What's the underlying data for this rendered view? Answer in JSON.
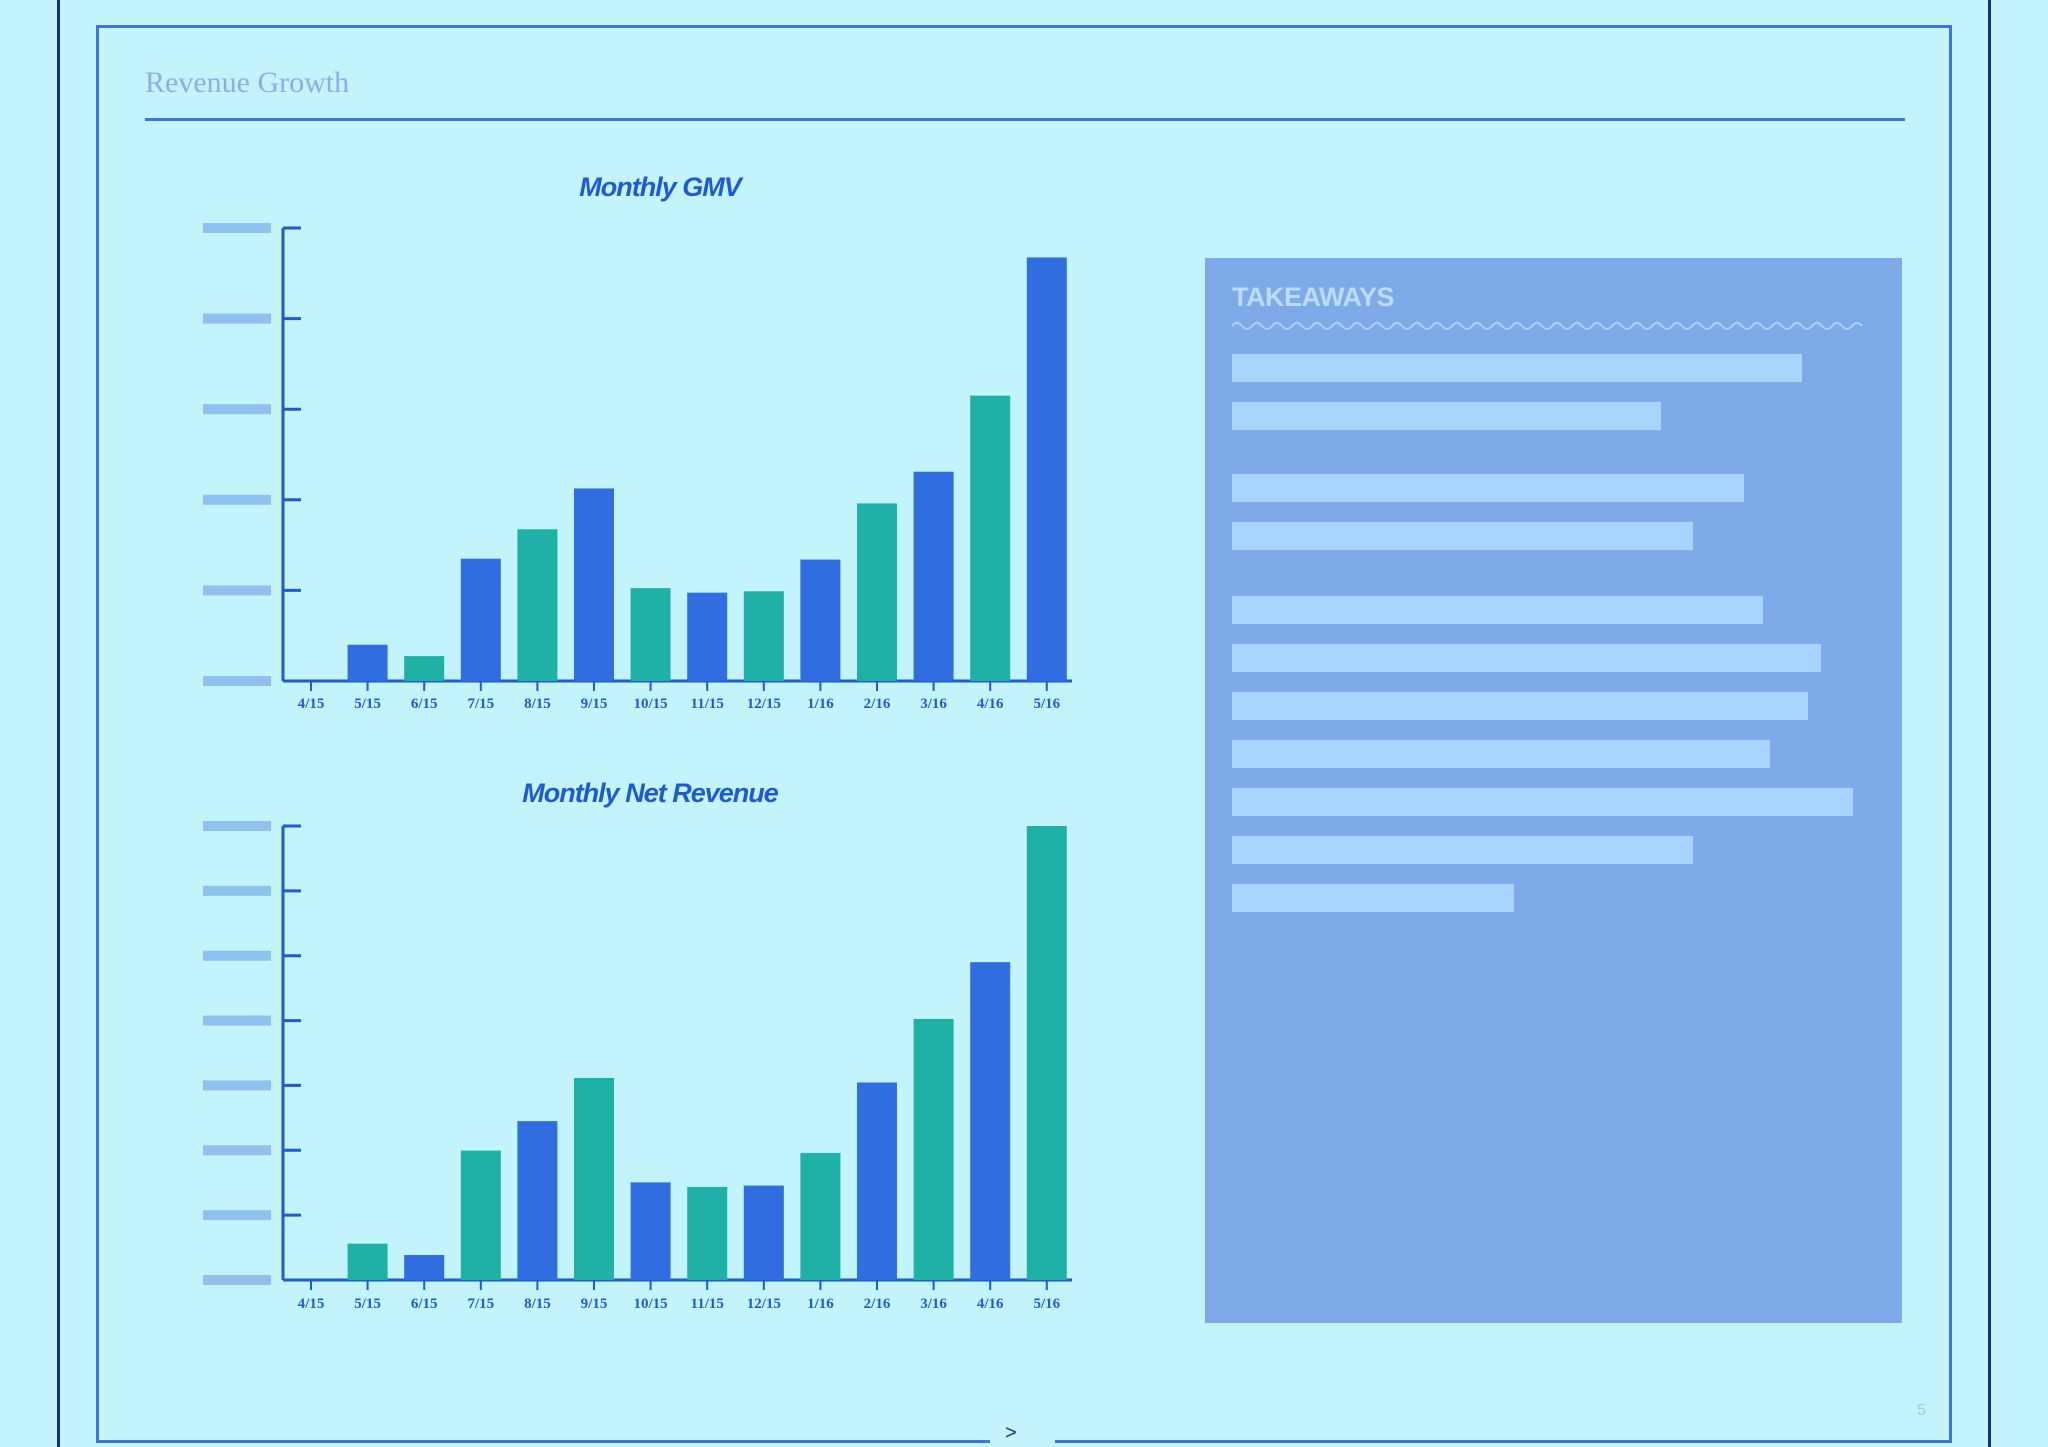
{
  "slide": {
    "title": "Revenue Growth",
    "page_number": "5",
    "bottom_mark": ">"
  },
  "takeaways": {
    "title": "TAKEAWAYS",
    "lines": [
      {
        "fraction": 0.89
      },
      {
        "fraction": 0.67
      },
      {
        "fraction": 0.8
      },
      {
        "fraction": 0.72
      },
      {
        "fraction": 0.83
      },
      {
        "fraction": 0.92
      },
      {
        "fraction": 0.9
      },
      {
        "fraction": 0.84
      },
      {
        "fraction": 0.97
      },
      {
        "fraction": 0.72
      },
      {
        "fraction": 0.44
      }
    ]
  },
  "colors": {
    "background": "#c3f3fb",
    "blue_bar": "#2f6de0",
    "teal_bar": "#1fb1a8",
    "axis": "#1d5bd6",
    "tick_placeholder": "#8fc0ee",
    "panel": "#7faaea"
  },
  "chart_data": [
    {
      "type": "bar",
      "title": "Monthly GMV",
      "categories": [
        "4/15",
        "5/15",
        "6/15",
        "7/15",
        "8/15",
        "9/15",
        "10/15",
        "11/15",
        "12/15",
        "1/16",
        "2/16",
        "3/16",
        "4/16",
        "5/16"
      ],
      "values": [
        0,
        0.8,
        0.55,
        2.7,
        3.35,
        4.25,
        2.05,
        1.95,
        1.98,
        2.68,
        3.92,
        4.62,
        6.3,
        9.35
      ],
      "bar_colors": [
        "blue",
        "blue",
        "teal",
        "blue",
        "teal",
        "blue",
        "teal",
        "blue",
        "teal",
        "blue",
        "teal",
        "blue",
        "teal",
        "blue"
      ],
      "ylim": [
        0,
        10
      ],
      "y_tick_count": 6,
      "y_tick_labels_redacted": true,
      "xlabel": "",
      "ylabel": "",
      "grid": false,
      "legend": "none"
    },
    {
      "type": "bar",
      "title": "Monthly Net Revenue",
      "categories": [
        "4/15",
        "5/15",
        "6/15",
        "7/15",
        "8/15",
        "9/15",
        "10/15",
        "11/15",
        "12/15",
        "1/16",
        "2/16",
        "3/16",
        "4/16",
        "5/16"
      ],
      "values": [
        0,
        0.8,
        0.55,
        2.85,
        3.5,
        4.45,
        2.15,
        2.05,
        2.08,
        2.8,
        4.35,
        5.75,
        7.0,
        10.0
      ],
      "bar_colors": [
        "teal",
        "teal",
        "blue",
        "teal",
        "blue",
        "teal",
        "blue",
        "teal",
        "blue",
        "teal",
        "blue",
        "teal",
        "blue",
        "teal"
      ],
      "ylim": [
        0,
        10
      ],
      "y_tick_count": 8,
      "y_tick_labels_redacted": true,
      "xlabel": "",
      "ylabel": "",
      "grid": false,
      "legend": "none"
    }
  ]
}
